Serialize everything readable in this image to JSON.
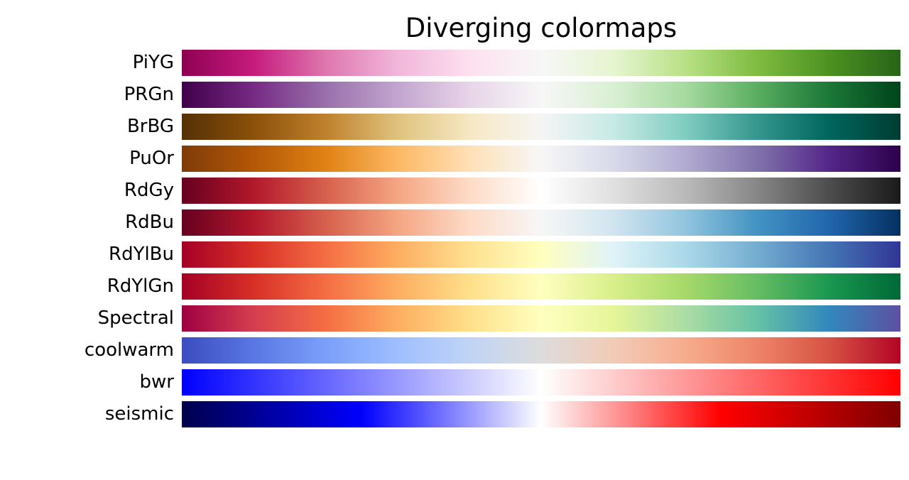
{
  "chart_data": {
    "type": "heatmap",
    "title": "Diverging colormaps",
    "xlabel": "",
    "ylabel": "",
    "grid": false,
    "categories": [
      "PiYG",
      "PRGn",
      "BrBG",
      "PuOr",
      "RdGy",
      "RdBu",
      "RdYlBu",
      "RdYlGn",
      "Spectral",
      "coolwarm",
      "bwr",
      "seismic"
    ],
    "series": [
      {
        "name": "PiYG",
        "colors": [
          "#8e0152",
          "#c51b7d",
          "#de77ae",
          "#f1b6da",
          "#fde0ef",
          "#f7f7f7",
          "#e6f5d0",
          "#b8e186",
          "#7fbc41",
          "#4d9221",
          "#276419"
        ]
      },
      {
        "name": "PRGn",
        "colors": [
          "#40004b",
          "#762a83",
          "#9970ab",
          "#c2a5cf",
          "#e7d4e8",
          "#f7f7f7",
          "#d9f0d3",
          "#a6dba0",
          "#5aae61",
          "#1b7837",
          "#00441b"
        ]
      },
      {
        "name": "BrBG",
        "colors": [
          "#543005",
          "#8c510a",
          "#bf812d",
          "#dfc27d",
          "#f6e8c3",
          "#f5f5f5",
          "#c7eae5",
          "#80cdc1",
          "#35978f",
          "#01665e",
          "#003c30"
        ]
      },
      {
        "name": "PuOr",
        "colors": [
          "#7f3b08",
          "#b35806",
          "#e08214",
          "#fdb863",
          "#fee0b6",
          "#f7f7f7",
          "#d8daeb",
          "#b2abd2",
          "#8073ac",
          "#542788",
          "#2d004b"
        ]
      },
      {
        "name": "RdGy",
        "colors": [
          "#67001f",
          "#b2182b",
          "#d6604d",
          "#f4a582",
          "#fddbc7",
          "#ffffff",
          "#e0e0e0",
          "#bababa",
          "#878787",
          "#4d4d4d",
          "#1a1a1a"
        ]
      },
      {
        "name": "RdBu",
        "colors": [
          "#67001f",
          "#b2182b",
          "#d6604d",
          "#f4a582",
          "#fddbc7",
          "#f7f7f7",
          "#d1e5f0",
          "#92c5de",
          "#4393c3",
          "#2166ac",
          "#053061"
        ]
      },
      {
        "name": "RdYlBu",
        "colors": [
          "#a50026",
          "#d73027",
          "#f46d43",
          "#fdae61",
          "#fee090",
          "#ffffbf",
          "#e0f3f8",
          "#abd9e9",
          "#74add1",
          "#4575b4",
          "#313695"
        ]
      },
      {
        "name": "RdYlGn",
        "colors": [
          "#a50026",
          "#d73027",
          "#f46d43",
          "#fdae61",
          "#fee08b",
          "#ffffbf",
          "#d9ef8b",
          "#a6d96a",
          "#66bd63",
          "#1a9850",
          "#006837"
        ]
      },
      {
        "name": "Spectral",
        "colors": [
          "#9e0142",
          "#d53e4f",
          "#f46d43",
          "#fdae61",
          "#fee08b",
          "#ffffbf",
          "#e6f598",
          "#abdda4",
          "#66c2a5",
          "#3288bd",
          "#5e4fa2"
        ]
      },
      {
        "name": "coolwarm",
        "colors": [
          "#3b4cc0",
          "#5977e3",
          "#7b9ff9",
          "#9ebeff",
          "#c0d4f5",
          "#dddcdc",
          "#f2cbb7",
          "#f7ac8e",
          "#ee8468",
          "#d65244",
          "#b40426"
        ]
      },
      {
        "name": "bwr",
        "colors": [
          "#0000ff",
          "#ffffff",
          "#ff0000"
        ]
      },
      {
        "name": "seismic",
        "colors": [
          "#00004c",
          "#0000ff",
          "#ffffff",
          "#ff0000",
          "#7f0000"
        ],
        "stops": [
          0,
          0.25,
          0.5,
          0.75,
          1
        ]
      }
    ]
  }
}
